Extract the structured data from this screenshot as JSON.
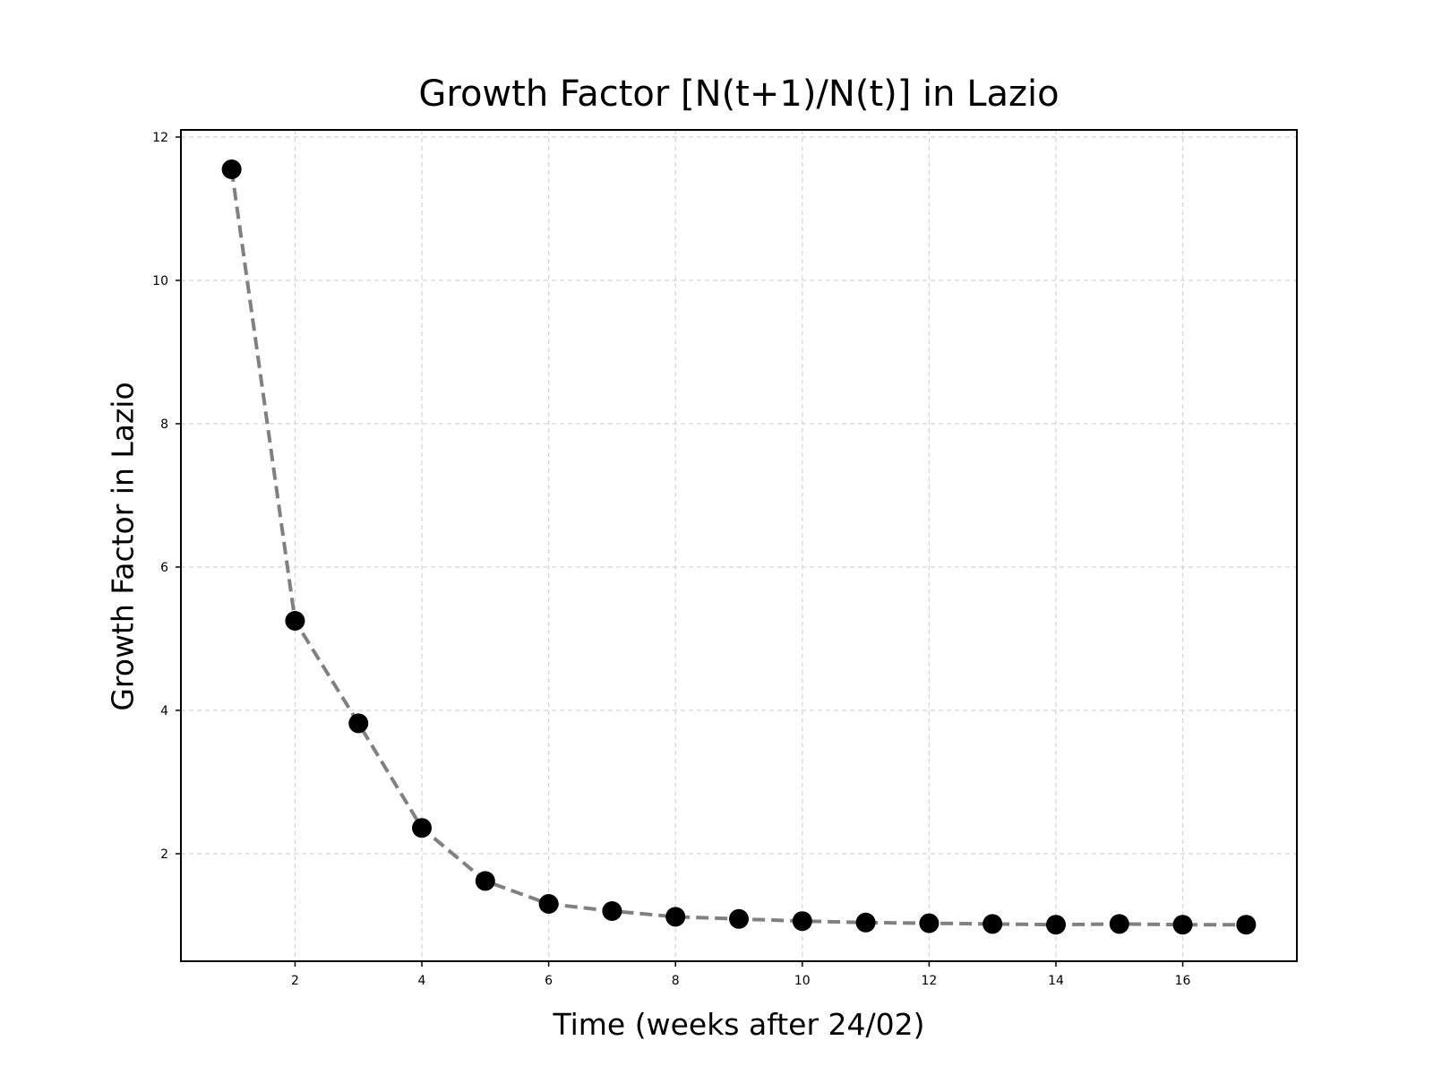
{
  "chart_data": {
    "type": "line",
    "title": "Growth Factor [N(t+1)/N(t)] in Lazio",
    "xlabel": "Time (weeks after 24/02)",
    "ylabel": "Growth Factor in Lazio",
    "xlim": [
      0.2,
      17.8
    ],
    "ylim": [
      0.5,
      12.1
    ],
    "x_ticks": [
      2,
      4,
      6,
      8,
      10,
      12,
      14,
      16
    ],
    "y_ticks": [
      2,
      4,
      6,
      8,
      10,
      12
    ],
    "grid": true,
    "line_style": "dashed",
    "line_color": "#808080",
    "marker_color": "#000000",
    "series": [
      {
        "x": [
          1,
          2,
          3,
          4,
          5,
          6,
          7,
          8,
          9,
          10,
          11,
          12,
          13,
          14,
          15,
          16,
          17
        ],
        "values": [
          11.55,
          5.25,
          3.82,
          2.36,
          1.62,
          1.3,
          1.2,
          1.12,
          1.09,
          1.06,
          1.04,
          1.03,
          1.02,
          1.01,
          1.02,
          1.01,
          1.01
        ]
      }
    ]
  }
}
